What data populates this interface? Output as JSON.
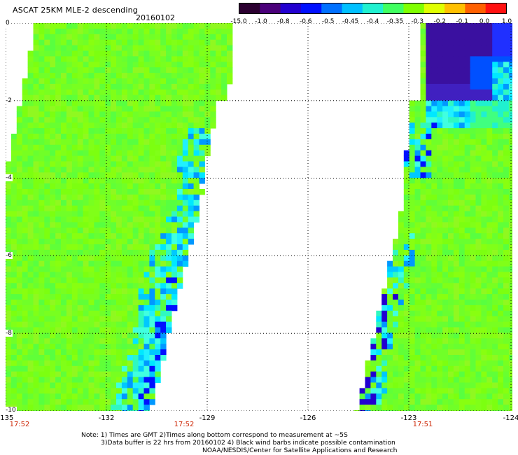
{
  "header": {
    "title": "ASCAT 25KM MLE-2 descending",
    "date": "20160102"
  },
  "colorbar": {
    "labels": [
      "-15.0",
      "-1.0",
      "-0.8",
      "-0.6",
      "-0.5",
      "-0.45",
      "-0.4",
      "-0.35",
      "-0.3",
      "-0.2",
      "-0.1",
      "0.0",
      "1.0"
    ],
    "colors": [
      "#2b0030",
      "#4a007a",
      "#2200d0",
      "#0010ff",
      "#0070ff",
      "#00c0ff",
      "#20f0d0",
      "#40ff60",
      "#80ff00",
      "#e0ff00",
      "#ffc000",
      "#ff6000",
      "#ff1010"
    ]
  },
  "map": {
    "lon_range": [
      -135,
      -124
    ],
    "lat_range": [
      -10,
      0
    ],
    "x_ticks": [
      "-135",
      "-132",
      "-129",
      "-126",
      "-123",
      "-124"
    ],
    "y_ticks": [
      "0",
      "-2",
      "-4",
      "-6",
      "-8",
      "-10"
    ],
    "swath_times": [
      "17:52",
      "17:52",
      "17:51"
    ]
  },
  "footer": {
    "note_line1": "Note: 1) Times are GMT 2)Times along bottom correspond to measurement at ~5S",
    "note_line2": "3)Data buffer is 22 hrs from 20160102 4) Black wind barbs indicate possible contamination",
    "credit": "NOAA/NESDIS/Center for Satellite Applications and Research"
  }
}
